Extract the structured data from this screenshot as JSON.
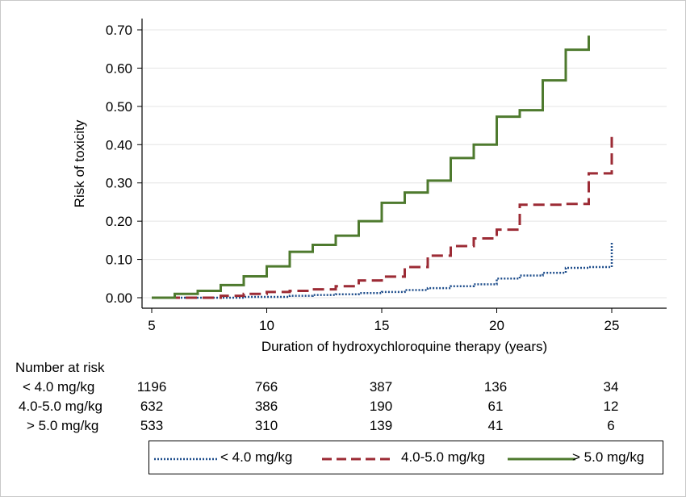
{
  "chart_data": {
    "type": "line",
    "step": true,
    "ylabel": "Risk of toxicity",
    "xlabel": "Duration of hydroxychloroquine therapy (years)",
    "xlim": [
      5,
      27.5
    ],
    "ylim": [
      0,
      0.7
    ],
    "xticks": [
      5,
      10,
      15,
      20,
      25
    ],
    "xtick_labels": [
      "5",
      "10",
      "15",
      "20",
      "25"
    ],
    "yticks": [
      0,
      0.1,
      0.2,
      0.3,
      0.4,
      0.5,
      0.6,
      0.7
    ],
    "ytick_labels": [
      "0.00",
      "0.10",
      "0.20",
      "0.30",
      "0.40",
      "0.50",
      "0.60",
      "0.70"
    ],
    "grid": "horizontal",
    "series": [
      {
        "name": "< 4.0 mg/kg",
        "color": "#1f4e8c",
        "dash": "dotted",
        "x": [
          5,
          9,
          11,
          12,
          13,
          14,
          15,
          16,
          17,
          18,
          19,
          20,
          21,
          22,
          23,
          24,
          25,
          25
        ],
        "y": [
          0,
          0.002,
          0.005,
          0.007,
          0.009,
          0.012,
          0.015,
          0.02,
          0.025,
          0.03,
          0.035,
          0.05,
          0.058,
          0.065,
          0.078,
          0.08,
          0.1,
          0.145
        ]
      },
      {
        "name": "4.0-5.0 mg/kg",
        "color": "#9c2b35",
        "dash": "dashed",
        "x": [
          5,
          8,
          9,
          10,
          11,
          12,
          13,
          14,
          15,
          16,
          17,
          18,
          19,
          20,
          21,
          22,
          23,
          24,
          25,
          25
        ],
        "y": [
          0,
          0.005,
          0.01,
          0.015,
          0.018,
          0.022,
          0.03,
          0.045,
          0.055,
          0.08,
          0.11,
          0.135,
          0.155,
          0.178,
          0.243,
          0.243,
          0.245,
          0.325,
          0.368,
          0.42
        ]
      },
      {
        "name": "> 5.0 mg/kg",
        "color": "#4e7a2e",
        "dash": "solid",
        "x": [
          5,
          6,
          7,
          8,
          9,
          10,
          11,
          12,
          13,
          14,
          15,
          16,
          17,
          18,
          19,
          20,
          21,
          22,
          23,
          24,
          24
        ],
        "y": [
          0,
          0.01,
          0.018,
          0.033,
          0.056,
          0.082,
          0.12,
          0.138,
          0.162,
          0.2,
          0.248,
          0.275,
          0.306,
          0.365,
          0.4,
          0.473,
          0.49,
          0.568,
          0.648,
          0.648,
          0.685
        ]
      }
    ]
  },
  "risk_table": {
    "title": "Number at risk",
    "columns": [
      5,
      10,
      15,
      20,
      25
    ],
    "rows": [
      {
        "label": "< 4.0 mg/kg",
        "values": [
          "1196",
          "766",
          "387",
          "136",
          "34"
        ]
      },
      {
        "label": "4.0-5.0 mg/kg",
        "values": [
          "632",
          "386",
          "190",
          "61",
          "12"
        ]
      },
      {
        "label": "> 5.0 mg/kg",
        "values": [
          "533",
          "310",
          "139",
          "41",
          "6"
        ]
      }
    ]
  },
  "legend": {
    "items": [
      {
        "label": "< 4.0 mg/kg",
        "color": "#1f4e8c",
        "dash": "dotted"
      },
      {
        "label": "4.0-5.0 mg/kg",
        "color": "#9c2b35",
        "dash": "dashed"
      },
      {
        "label": "> 5.0 mg/kg",
        "color": "#4e7a2e",
        "dash": "solid"
      }
    ]
  }
}
